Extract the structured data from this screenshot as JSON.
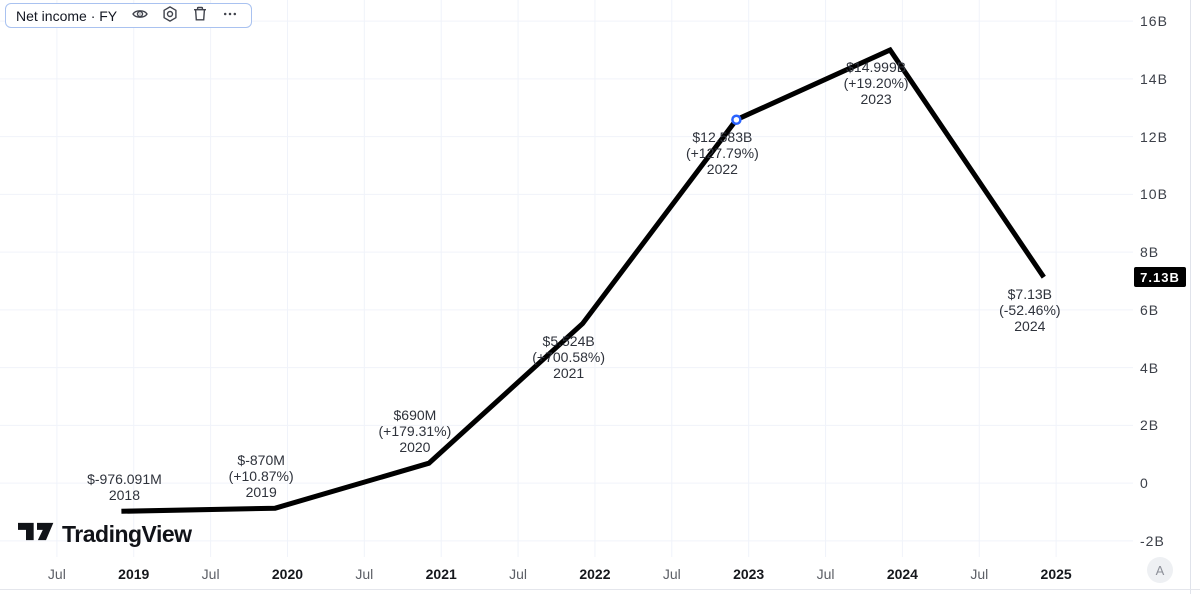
{
  "header": {
    "series_label": "Net income · FY"
  },
  "footer": {
    "logo_text": "TradingView"
  },
  "corner_badge": "A",
  "chart_data": {
    "type": "line",
    "title": "Net income · FY",
    "line_color": "#000000",
    "marker_color": "#2962ff",
    "grid": true,
    "legend_position": "top-left",
    "xlim": [
      2018.13,
      2025.5
    ],
    "ylim": [
      -2.56,
      16.73
    ],
    "points": [
      {
        "t": 2018.92,
        "value_b": -0.976091,
        "label_value": "$-976.091M",
        "label_change": "",
        "label_year": "2018",
        "label_pos": "above",
        "marker": false
      },
      {
        "t": 2019.92,
        "value_b": -0.87,
        "label_value": "$-870M",
        "label_change": "(+10.87%)",
        "label_year": "2019",
        "label_pos": "above",
        "marker": false
      },
      {
        "t": 2020.92,
        "value_b": 0.69,
        "label_value": "$690M",
        "label_change": "(+179.31%)",
        "label_year": "2020",
        "label_pos": "above",
        "marker": false
      },
      {
        "t": 2021.92,
        "value_b": 5.524,
        "label_value": "$5.524B",
        "label_change": "(+700.58%)",
        "label_year": "2021",
        "label_pos": "below",
        "marker": false
      },
      {
        "t": 2022.92,
        "value_b": 12.583,
        "label_value": "$12.583B",
        "label_change": "(+127.79%)",
        "label_year": "2022",
        "label_pos": "below",
        "marker": true
      },
      {
        "t": 2023.92,
        "value_b": 14.999,
        "label_value": "$14.999B",
        "label_change": "(+19.20%)",
        "label_year": "2023",
        "label_pos": "below",
        "marker": false
      },
      {
        "t": 2024.92,
        "value_b": 7.13,
        "label_value": "$7.13B",
        "label_change": "(-52.46%)",
        "label_year": "2024",
        "label_pos": "below",
        "marker": false
      }
    ],
    "y_axis": {
      "ticks": [
        {
          "value": 16,
          "label": "16B"
        },
        {
          "value": 14,
          "label": "14B"
        },
        {
          "value": 12,
          "label": "12B"
        },
        {
          "value": 10,
          "label": "10B"
        },
        {
          "value": 8,
          "label": "8B"
        },
        {
          "value": 6,
          "label": "6B"
        },
        {
          "value": 4,
          "label": "4B"
        },
        {
          "value": 2,
          "label": "2B"
        },
        {
          "value": 0,
          "label": "0"
        },
        {
          "value": -2,
          "label": "-2B"
        }
      ],
      "last_price": {
        "value": 7.13,
        "label": "7.13B"
      }
    },
    "x_axis": {
      "ticks": [
        {
          "t": 2018.5,
          "label": "Jul",
          "major": false
        },
        {
          "t": 2019,
          "label": "2019",
          "major": true
        },
        {
          "t": 2019.5,
          "label": "Jul",
          "major": false
        },
        {
          "t": 2020,
          "label": "2020",
          "major": true
        },
        {
          "t": 2020.5,
          "label": "Jul",
          "major": false
        },
        {
          "t": 2021,
          "label": "2021",
          "major": true
        },
        {
          "t": 2021.5,
          "label": "Jul",
          "major": false
        },
        {
          "t": 2022,
          "label": "2022",
          "major": true
        },
        {
          "t": 2022.5,
          "label": "Jul",
          "major": false
        },
        {
          "t": 2023,
          "label": "2023",
          "major": true
        },
        {
          "t": 2023.5,
          "label": "Jul",
          "major": false
        },
        {
          "t": 2024,
          "label": "2024",
          "major": true
        },
        {
          "t": 2024.5,
          "label": "Jul",
          "major": false
        },
        {
          "t": 2025,
          "label": "2025",
          "major": true
        }
      ]
    }
  }
}
